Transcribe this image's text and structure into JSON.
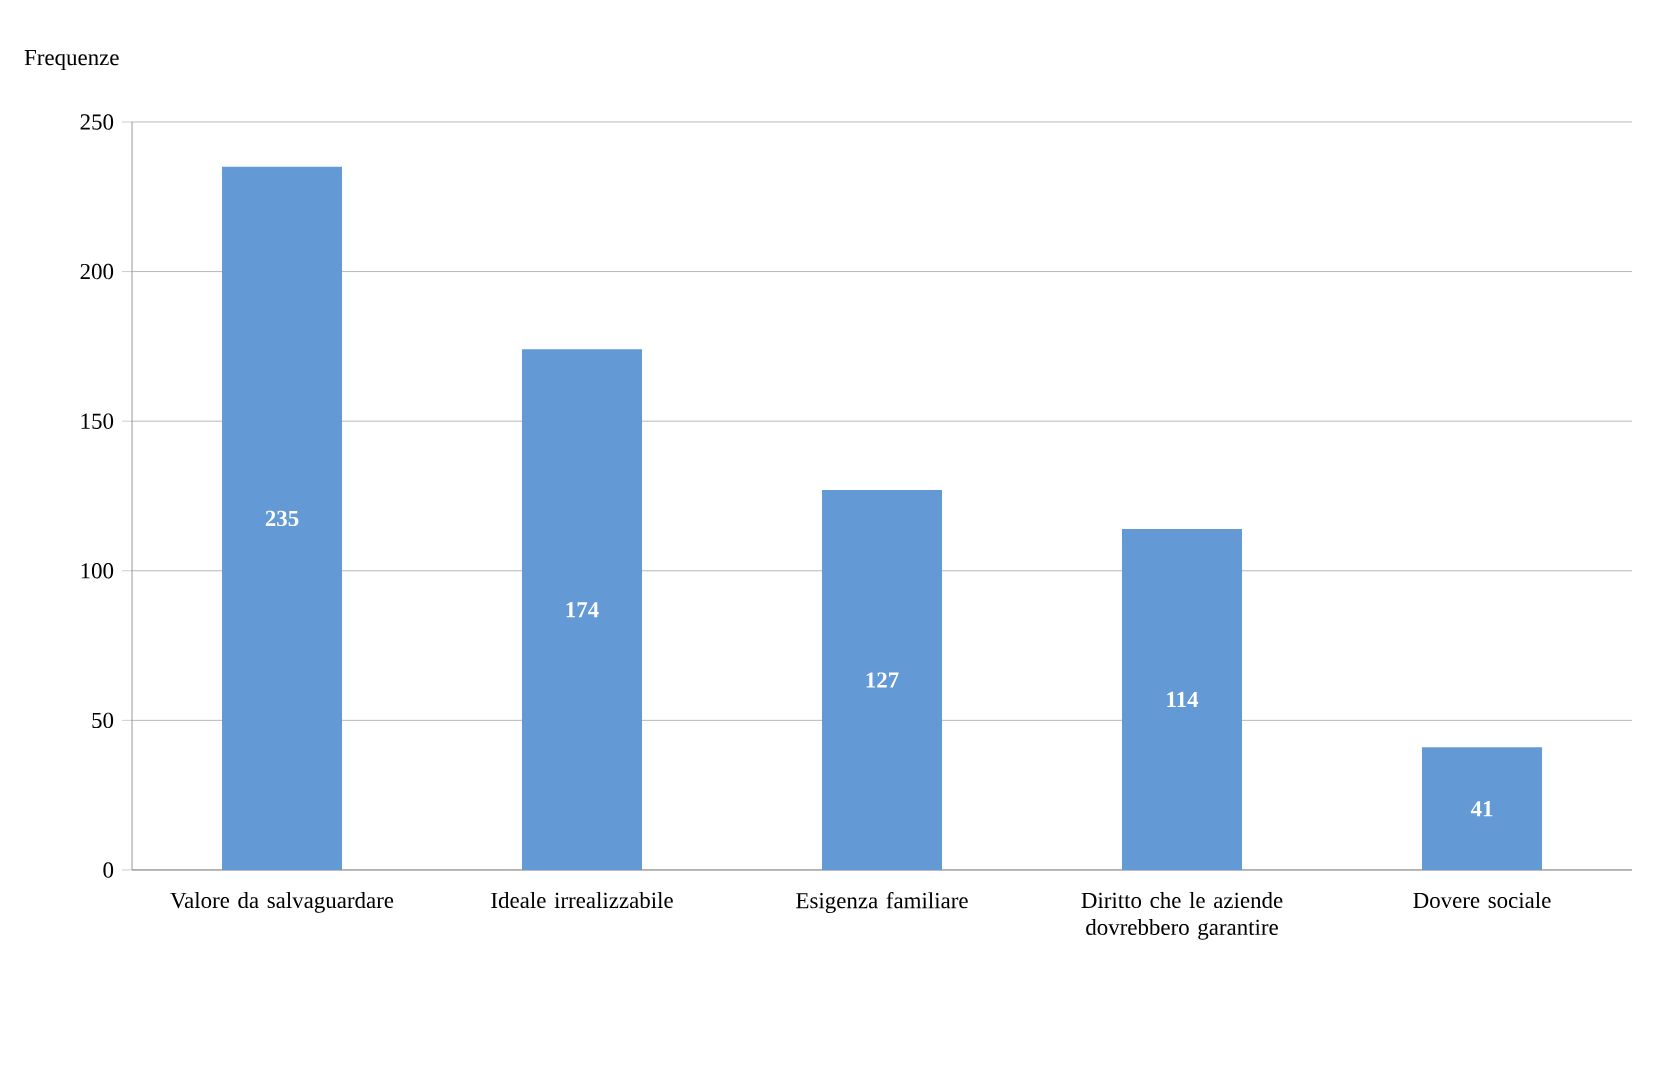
{
  "chart_data": {
    "type": "bar",
    "ylabel": "Frequenze",
    "categories": [
      "Valore da salvaguardare",
      "Ideale irrealizzabile",
      "Esigenza familiare",
      "Diritto che le aziende dovrebbero garantire",
      "Dovere sociale"
    ],
    "values": [
      235,
      174,
      127,
      114,
      41
    ],
    "color": "#6399d4",
    "ylim": [
      0,
      250
    ],
    "yticks": [
      0,
      50,
      100,
      150,
      200,
      250
    ],
    "grid": "y",
    "data_labels": true
  }
}
